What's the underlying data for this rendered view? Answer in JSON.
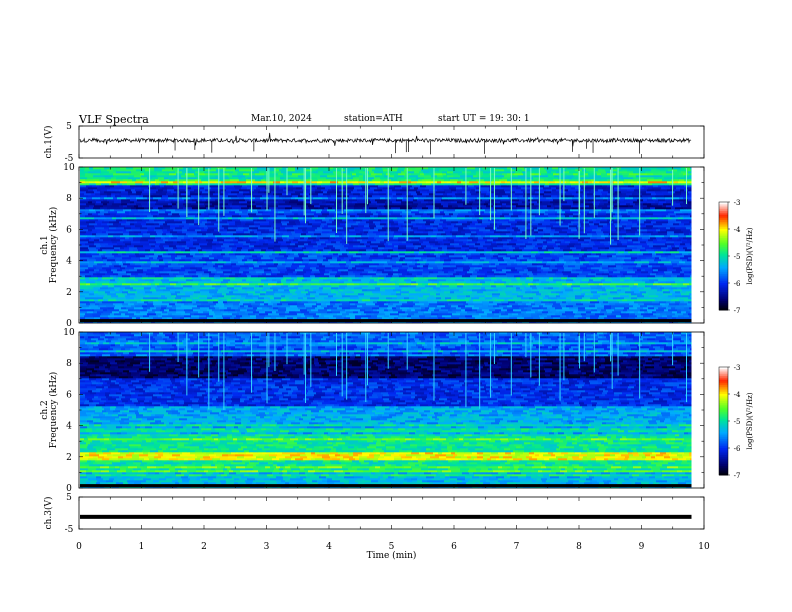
{
  "header": {
    "title": "VLF  Spectra",
    "date": "Mar.10, 2024",
    "station": "station=ATH",
    "start": "start  UT  =    19: 30: 1"
  },
  "chart_data": [
    {
      "type": "line",
      "ylabel": "ch.1(V)",
      "ylim": [
        -5,
        5
      ],
      "yticks": [
        "5",
        "-5"
      ],
      "description_free": true,
      "mean_level": 0.5,
      "xlim": [
        0,
        10
      ],
      "data_end_min": 9.8
    },
    {
      "type": "heatmap",
      "ylabel_top": "ch.1",
      "ylabel": "Frequency  (kHz)",
      "ylim": [
        0,
        10
      ],
      "yticks": [
        "0",
        "2",
        "4",
        "6",
        "8",
        "10"
      ],
      "xlim": [
        0,
        10
      ],
      "colorbar": {
        "label": "log(PSD)(V²/Hz)",
        "range": [
          -7,
          -3
        ],
        "ticks": [
          "-3",
          "-4",
          "-5",
          "-6",
          "-7"
        ]
      }
    },
    {
      "type": "heatmap",
      "ylabel_top": "ch.2",
      "ylabel": "Frequency  (kHz)",
      "ylim": [
        0,
        10
      ],
      "yticks": [
        "0",
        "2",
        "4",
        "6",
        "8",
        "10"
      ],
      "xlim": [
        0,
        10
      ],
      "colorbar": {
        "label": "log(PSD)(V²/Hz)",
        "range": [
          -7,
          -3
        ],
        "ticks": [
          "-3",
          "-4",
          "-5",
          "-6",
          "-7"
        ]
      }
    },
    {
      "type": "line",
      "ylabel": "ch.3(V)",
      "ylim": [
        -5,
        5
      ],
      "yticks": [
        "5",
        "-5"
      ],
      "mean_level": -1.2,
      "xlim": [
        0,
        10
      ],
      "data_end_min": 9.8
    }
  ],
  "xaxis": {
    "label": "Time  (min)",
    "ticks": [
      "0",
      "1",
      "2",
      "3",
      "4",
      "5",
      "6",
      "7",
      "8",
      "9",
      "10"
    ]
  }
}
